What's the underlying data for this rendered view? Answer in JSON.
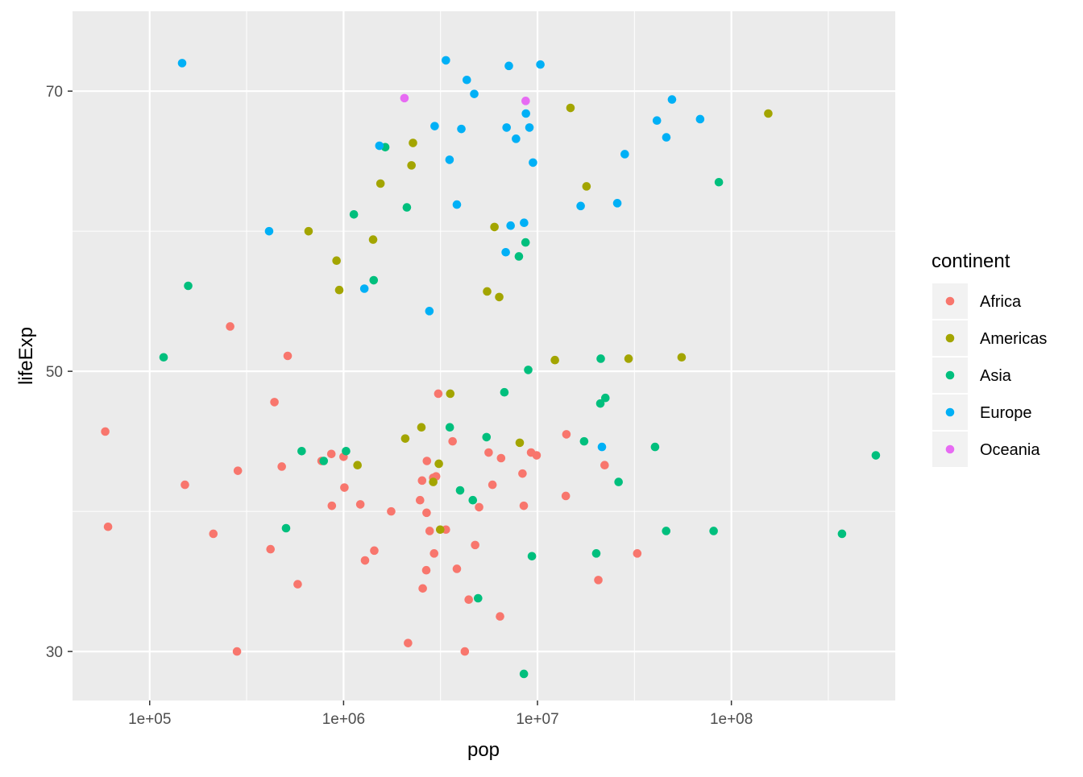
{
  "chart_data": {
    "type": "scatter",
    "xlabel": "pop",
    "ylabel": "lifeExp",
    "x_scale": "log10",
    "xlim": [
      40000,
      700000000
    ],
    "ylim": [
      26.5,
      75.7
    ],
    "x_ticks": [
      {
        "value": 100000,
        "label": "1e+05"
      },
      {
        "value": 1000000,
        "label": "1e+06"
      },
      {
        "value": 10000000,
        "label": "1e+07"
      },
      {
        "value": 100000000,
        "label": "1e+08"
      }
    ],
    "y_ticks": [
      {
        "value": 30,
        "label": "30"
      },
      {
        "value": 50,
        "label": "50"
      },
      {
        "value": 70,
        "label": "70"
      }
    ],
    "grid": true,
    "legend": {
      "title": "continent",
      "position": "right"
    },
    "series": [
      {
        "name": "Africa",
        "color": "#F8766D",
        "points": [
          [
            59000,
            45.7
          ],
          [
            61000,
            38.9
          ],
          [
            152000,
            41.9
          ],
          [
            213000,
            38.4
          ],
          [
            260000,
            53.2
          ],
          [
            285000,
            42.9
          ],
          [
            282000,
            30.0
          ],
          [
            440000,
            47.8
          ],
          [
            480000,
            43.2
          ],
          [
            515000,
            51.1
          ],
          [
            420000,
            37.3
          ],
          [
            580000,
            34.8
          ],
          [
            770000,
            43.6
          ],
          [
            865000,
            44.1
          ],
          [
            870000,
            40.4
          ],
          [
            1010000,
            41.7
          ],
          [
            1000000,
            43.9
          ],
          [
            1220000,
            40.5
          ],
          [
            1290000,
            36.5
          ],
          [
            1440000,
            37.2
          ],
          [
            1760000,
            40.0
          ],
          [
            2150000,
            30.6
          ],
          [
            2480000,
            40.8
          ],
          [
            2540000,
            42.2
          ],
          [
            2560000,
            34.5
          ],
          [
            2670000,
            35.8
          ],
          [
            2680000,
            39.9
          ],
          [
            2690000,
            43.6
          ],
          [
            2780000,
            38.6
          ],
          [
            2900000,
            42.4
          ],
          [
            2930000,
            37.0
          ],
          [
            3000000,
            42.5
          ],
          [
            3080000,
            48.4
          ],
          [
            3370000,
            38.7
          ],
          [
            3650000,
            45.0
          ],
          [
            3840000,
            35.9
          ],
          [
            4220000,
            30.0
          ],
          [
            4420000,
            33.7
          ],
          [
            4770000,
            37.6
          ],
          [
            5000000,
            40.3
          ],
          [
            5600000,
            44.2
          ],
          [
            5860000,
            41.9
          ],
          [
            6410000,
            32.5
          ],
          [
            6490000,
            43.8
          ],
          [
            8370000,
            42.7
          ],
          [
            8500000,
            40.4
          ],
          [
            9270000,
            44.2
          ],
          [
            9900000,
            44.0
          ],
          [
            14100000,
            45.5
          ],
          [
            14000000,
            41.1
          ],
          [
            20600000,
            35.1
          ],
          [
            22200000,
            43.3
          ],
          [
            32700000,
            37.0
          ]
        ]
      },
      {
        "name": "Americas",
        "color": "#A3A500",
        "points": [
          [
            660000,
            60.0
          ],
          [
            920000,
            57.9
          ],
          [
            950000,
            55.8
          ],
          [
            1180000,
            43.3
          ],
          [
            1420000,
            59.4
          ],
          [
            1550000,
            63.4
          ],
          [
            2080000,
            45.2
          ],
          [
            2240000,
            64.7
          ],
          [
            2280000,
            66.3
          ],
          [
            2520000,
            46.0
          ],
          [
            2900000,
            42.1
          ],
          [
            3100000,
            43.4
          ],
          [
            3150000,
            38.7
          ],
          [
            3550000,
            48.4
          ],
          [
            5500000,
            55.7
          ],
          [
            6000000,
            60.3
          ],
          [
            6350000,
            55.3
          ],
          [
            8100000,
            44.9
          ],
          [
            12300000,
            50.8
          ],
          [
            14800000,
            68.8
          ],
          [
            17900000,
            63.2
          ],
          [
            29500000,
            50.9
          ],
          [
            55400000,
            51.0
          ],
          [
            155000000,
            68.4
          ]
        ]
      },
      {
        "name": "Asia",
        "color": "#00BF7D",
        "points": [
          [
            118000,
            51.0
          ],
          [
            158000,
            56.1
          ],
          [
            505000,
            38.8
          ],
          [
            608000,
            44.3
          ],
          [
            790000,
            43.6
          ],
          [
            1030000,
            44.3
          ],
          [
            1130000,
            61.2
          ],
          [
            1430000,
            56.5
          ],
          [
            1640000,
            66.0
          ],
          [
            2120000,
            61.7
          ],
          [
            3530000,
            46.0
          ],
          [
            3990000,
            41.5
          ],
          [
            4640000,
            40.8
          ],
          [
            4940000,
            33.8
          ],
          [
            5460000,
            45.3
          ],
          [
            6750000,
            48.5
          ],
          [
            8020000,
            58.2
          ],
          [
            8680000,
            59.2
          ],
          [
            8510000,
            28.4
          ],
          [
            8960000,
            50.1
          ],
          [
            9360000,
            36.8
          ],
          [
            17400000,
            45.0
          ],
          [
            20100000,
            37.0
          ],
          [
            21100000,
            47.7
          ],
          [
            21200000,
            50.9
          ],
          [
            22400000,
            48.1
          ],
          [
            26200000,
            42.1
          ],
          [
            40400000,
            44.6
          ],
          [
            46100000,
            38.6
          ],
          [
            81000000,
            38.6
          ],
          [
            86200000,
            63.5
          ],
          [
            372000000,
            38.4
          ],
          [
            556000000,
            44.0
          ]
        ]
      },
      {
        "name": "Europe",
        "color": "#00B0F6",
        "points": [
          [
            147000,
            72.0
          ],
          [
            413000,
            60.0
          ],
          [
            1280000,
            55.9
          ],
          [
            1530000,
            66.1
          ],
          [
            2770000,
            54.3
          ],
          [
            2950000,
            67.5
          ],
          [
            3370000,
            72.2
          ],
          [
            3520000,
            65.1
          ],
          [
            3840000,
            61.9
          ],
          [
            4050000,
            67.3
          ],
          [
            4320000,
            70.8
          ],
          [
            4720000,
            69.8
          ],
          [
            6860000,
            58.5
          ],
          [
            6930000,
            67.4
          ],
          [
            7120000,
            71.8
          ],
          [
            7270000,
            60.4
          ],
          [
            7750000,
            66.6
          ],
          [
            8530000,
            60.6
          ],
          [
            8720000,
            68.4
          ],
          [
            9090000,
            67.4
          ],
          [
            9480000,
            64.9
          ],
          [
            10350000,
            71.9
          ],
          [
            16700000,
            61.8
          ],
          [
            21500000,
            44.6
          ],
          [
            25800000,
            62.0
          ],
          [
            28200000,
            65.5
          ],
          [
            41300000,
            67.9
          ],
          [
            46200000,
            66.7
          ],
          [
            49400000,
            69.4
          ],
          [
            69000000,
            68.0
          ]
        ]
      },
      {
        "name": "Oceania",
        "color": "#E76BF3",
        "points": [
          [
            2060000,
            69.5
          ],
          [
            8690000,
            69.3
          ]
        ]
      }
    ]
  }
}
